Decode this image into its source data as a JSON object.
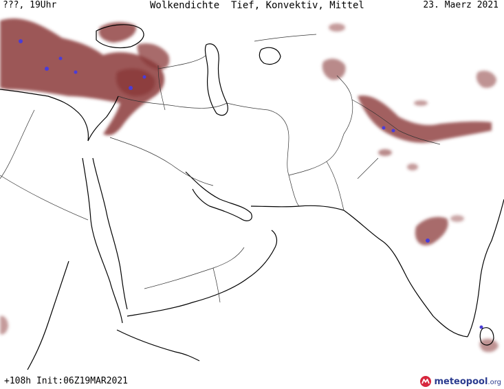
{
  "header": {
    "left": "???, 19Uhr",
    "center": "Wolkendichte  Tief, Konvektiv, Mittel",
    "right": "23. Maerz 2021"
  },
  "footer": {
    "run_info": "+108h Init:06Z19MAR2021",
    "logo_name": "meteopool",
    "logo_suffix": ".org"
  },
  "colors": {
    "cloud_fill": "#8b3a3a",
    "cloud_light": "#c98f8f",
    "convective": "#4a3cd8",
    "coastline": "#000000",
    "border": "#333333",
    "logo_red": "#d7263d",
    "logo_blue": "#2a3b8f"
  },
  "icons": [
    "meteopool-logo-icon"
  ]
}
